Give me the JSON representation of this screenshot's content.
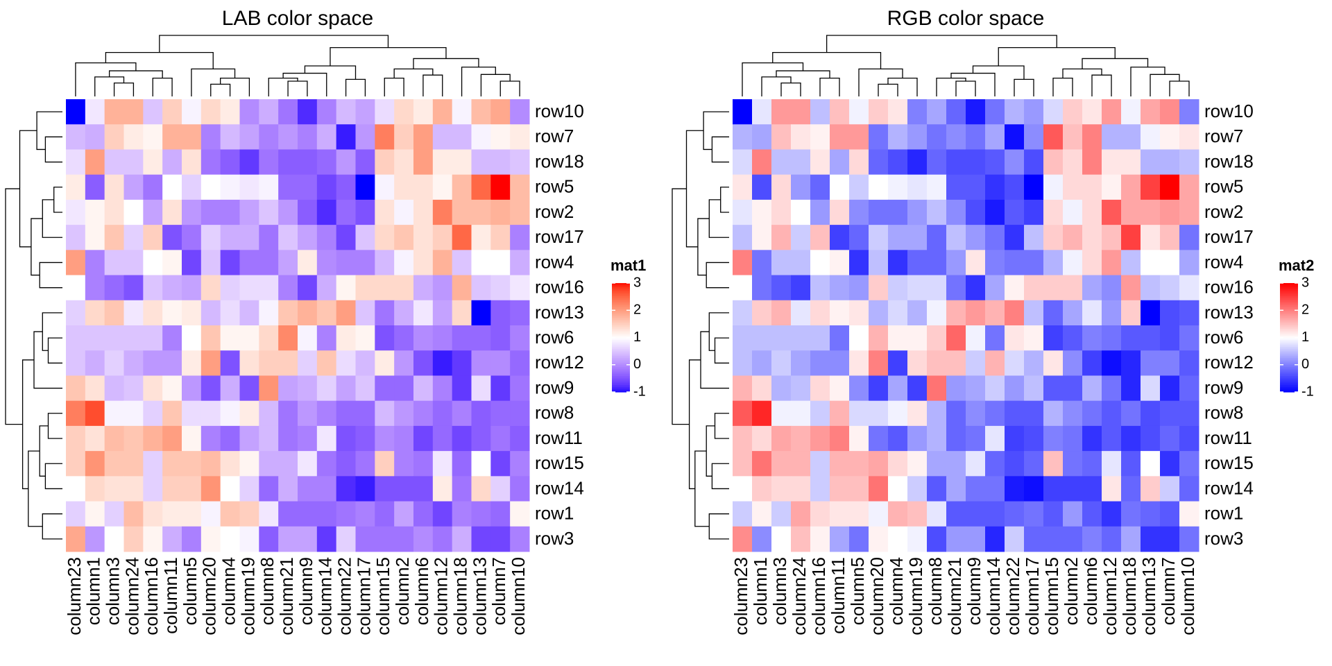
{
  "chart_data": [
    {
      "type": "heatmap",
      "title": "LAB color space",
      "legend_title": "mat1",
      "color_space": "LAB",
      "color_stops": [
        {
          "value": -1,
          "color": "#0000ff"
        },
        {
          "value": 1,
          "color": "#ffffff"
        },
        {
          "value": 3,
          "color": "#ff0000"
        }
      ],
      "legend_ticks": [
        -1,
        0,
        1,
        2,
        3
      ],
      "rows": [
        "row10",
        "row7",
        "row18",
        "row5",
        "row2",
        "row17",
        "row4",
        "row16",
        "row13",
        "row6",
        "row12",
        "row9",
        "row8",
        "row11",
        "row15",
        "row14",
        "row1",
        "row3"
      ],
      "columns": [
        "column23",
        "column1",
        "column3",
        "column24",
        "column16",
        "column11",
        "column5",
        "column20",
        "column4",
        "column19",
        "column8",
        "column21",
        "column9",
        "column14",
        "column22",
        "column17",
        "column15",
        "column2",
        "column6",
        "column12",
        "column18",
        "column13",
        "column7",
        "column10"
      ],
      "values": [
        [
          -1,
          0.8,
          1.8,
          1.8,
          0.5,
          1.5,
          0.9,
          1.4,
          1.2,
          0,
          0.3,
          -0.2,
          -0.8,
          -0.1,
          0.4,
          0.2,
          0.7,
          1.4,
          1.2,
          1.8,
          0.9,
          1.7,
          1.9,
          0
        ],
        [
          0.4,
          0.3,
          1.5,
          1.2,
          1.1,
          1.8,
          1.8,
          -0.1,
          0.4,
          0.2,
          -0.1,
          0.1,
          -0.1,
          0.3,
          -0.9,
          0.1,
          2.3,
          1.5,
          2.0,
          0.4,
          0.4,
          0.9,
          1.1,
          1.2
        ],
        [
          0.7,
          2.0,
          0.5,
          0.5,
          1.2,
          0.3,
          1.3,
          -0.2,
          -0.4,
          -0.7,
          -0.2,
          -0.4,
          -0.4,
          -0.3,
          0.1,
          -0.4,
          1.5,
          1.3,
          2.0,
          1.2,
          1.2,
          0.4,
          0.4,
          0.5
        ],
        [
          1.2,
          -0.4,
          1.3,
          0.2,
          -0.2,
          1.0,
          0.6,
          1.0,
          0.9,
          0.8,
          0.9,
          -0.3,
          -0.3,
          -0.6,
          -0.4,
          -1.0,
          0.9,
          1.3,
          1.3,
          1.1,
          1.7,
          2.5,
          3.0,
          1.7
        ],
        [
          0.8,
          1.1,
          1.3,
          1.0,
          0.2,
          1.3,
          0.1,
          -0.1,
          -0.1,
          0.2,
          0.5,
          0.1,
          -0.4,
          -0.8,
          -0.3,
          -0.5,
          1.3,
          0.9,
          1.3,
          2.3,
          1.7,
          1.7,
          1.8,
          1.7
        ],
        [
          0.5,
          1.1,
          1.6,
          0.6,
          1.5,
          -0.5,
          -0.2,
          0.6,
          0.3,
          0.3,
          -0.2,
          0.5,
          0.2,
          -0.1,
          -0.6,
          0.5,
          1.4,
          1.6,
          1.3,
          1.5,
          2.5,
          1.2,
          1.5,
          -0.1
        ],
        [
          2.0,
          -0.1,
          0.5,
          0.5,
          1.0,
          1.1,
          -0.6,
          0.5,
          -0.6,
          -0.2,
          -0.2,
          0.2,
          1.2,
          0,
          -0.1,
          -0.1,
          0.4,
          0.9,
          1.3,
          1.8,
          0.5,
          1.0,
          1.0,
          0.3
        ],
        [
          1.0,
          -0.1,
          -0.3,
          -0.5,
          0.5,
          0.3,
          0.2,
          1.4,
          0.6,
          0.7,
          0.7,
          -0.1,
          -0.6,
          0.3,
          1.1,
          1.4,
          1.4,
          1.4,
          0.3,
          0.1,
          1.8,
          0.5,
          0.6,
          0.8
        ],
        [
          0.6,
          1.4,
          1.6,
          0.8,
          1.3,
          1.1,
          1.2,
          0.4,
          0.7,
          0.4,
          0.9,
          1.6,
          1.8,
          1.6,
          2.0,
          0.5,
          -0.2,
          0.3,
          0.8,
          0.2,
          1.4,
          -1.0,
          -0.4,
          -0.3
        ],
        [
          0.5,
          0.5,
          0.5,
          0.5,
          0.5,
          -0.1,
          1.0,
          1.6,
          1.1,
          1.1,
          1.4,
          2.2,
          0.9,
          -0.1,
          1.2,
          1.1,
          -0.5,
          -0.3,
          0,
          -0.1,
          -0.3,
          -0.3,
          -0.4,
          -0.1
        ],
        [
          0.5,
          0.3,
          0.6,
          0.3,
          0.1,
          0.1,
          1.2,
          2.0,
          -0.5,
          1.3,
          1.5,
          1.5,
          0.6,
          1.6,
          0.7,
          0.4,
          1.2,
          0.1,
          -0.5,
          -0.9,
          -0.7,
          0,
          0,
          -0.3
        ],
        [
          1.6,
          1.3,
          0.4,
          0.5,
          1.3,
          1.1,
          0.1,
          -0.5,
          0.3,
          -0.5,
          2.1,
          0.2,
          0.3,
          0.6,
          0.2,
          0.5,
          -0.3,
          -0.3,
          0.4,
          -0.1,
          -0.7,
          0.7,
          -0.7,
          -0.2
        ],
        [
          2.3,
          2.7,
          0.9,
          0.9,
          0.6,
          1.6,
          0.7,
          0.7,
          0.9,
          1.2,
          0.4,
          -0.2,
          0.1,
          -0.1,
          -0.3,
          -0.3,
          0.4,
          0.1,
          -0.1,
          -0.3,
          -0.1,
          -0.4,
          -0.3,
          -0.3
        ],
        [
          1.5,
          1.3,
          1.7,
          1.6,
          1.8,
          2.0,
          1.1,
          -0.1,
          -0.3,
          0.2,
          0.4,
          -0.2,
          -0.1,
          0.8,
          -0.5,
          -0.4,
          0,
          -0.1,
          -0.6,
          -0.3,
          -0.6,
          -0.4,
          -0.2,
          -0.4
        ],
        [
          1.5,
          2.1,
          1.6,
          1.6,
          0.6,
          1.6,
          1.6,
          1.7,
          1.3,
          1.1,
          0.3,
          0.3,
          0.8,
          -0.2,
          -0.4,
          -0.2,
          1.5,
          -0.1,
          -0.2,
          0.8,
          -0.3,
          1.0,
          -0.6,
          -0.1
        ],
        [
          1.0,
          1.4,
          1.3,
          1.3,
          0.6,
          1.5,
          1.5,
          2.1,
          1.0,
          0.6,
          -0.3,
          0.3,
          -0.1,
          -0.1,
          -0.8,
          -0.9,
          -0.5,
          -0.5,
          -0.5,
          1.2,
          -0.2,
          1.4,
          0.6,
          -0.2
        ],
        [
          0.6,
          1.1,
          0.6,
          1.7,
          1.3,
          1.2,
          1.2,
          0.9,
          1.6,
          1.5,
          0.8,
          -0.3,
          -0.3,
          -0.3,
          -0.2,
          -0.1,
          -0.3,
          0.2,
          -0.3,
          -0.6,
          -0.1,
          -0.2,
          -0.3,
          1.1
        ],
        [
          1.9,
          0.1,
          1.0,
          1.5,
          1.1,
          0.3,
          -0.1,
          1.1,
          1.0,
          0.9,
          -0.4,
          0.2,
          0.2,
          -0.7,
          0.6,
          -0.2,
          -0.2,
          -0.2,
          0,
          -0.2,
          0.3,
          -0.6,
          -0.6,
          -0.1
        ]
      ]
    },
    {
      "type": "heatmap",
      "title": "RGB color space",
      "legend_title": "mat2",
      "color_space": "RGB",
      "color_stops": [
        {
          "value": -1,
          "color": "#0000ff"
        },
        {
          "value": 1,
          "color": "#ffffff"
        },
        {
          "value": 3,
          "color": "#ff0000"
        }
      ],
      "legend_ticks": [
        -1,
        0,
        1,
        2,
        3
      ],
      "rows": [
        "row10",
        "row7",
        "row18",
        "row5",
        "row2",
        "row17",
        "row4",
        "row16",
        "row13",
        "row6",
        "row12",
        "row9",
        "row8",
        "row11",
        "row15",
        "row14",
        "row1",
        "row3"
      ],
      "columns": [
        "column23",
        "column1",
        "column3",
        "column24",
        "column16",
        "column11",
        "column5",
        "column20",
        "column4",
        "column19",
        "column8",
        "column21",
        "column9",
        "column14",
        "column22",
        "column17",
        "column15",
        "column2",
        "column6",
        "column12",
        "column18",
        "column13",
        "column7",
        "column10"
      ],
      "values": [
        [
          -1,
          0.8,
          1.8,
          1.8,
          0.5,
          1.5,
          0.9,
          1.4,
          1.2,
          0,
          0.3,
          -0.2,
          -0.8,
          -0.1,
          0.4,
          0.2,
          0.7,
          1.4,
          1.2,
          1.8,
          0.9,
          1.7,
          1.9,
          0
        ],
        [
          0.4,
          0.3,
          1.5,
          1.2,
          1.1,
          1.8,
          1.8,
          -0.1,
          0.4,
          0.2,
          -0.1,
          0.1,
          -0.1,
          0.3,
          -0.9,
          0.1,
          2.3,
          1.5,
          2.0,
          0.4,
          0.4,
          0.9,
          1.1,
          1.2
        ],
        [
          0.7,
          2.0,
          0.5,
          0.5,
          1.2,
          0.3,
          1.3,
          -0.2,
          -0.4,
          -0.7,
          -0.2,
          -0.4,
          -0.4,
          -0.3,
          0.1,
          -0.4,
          1.5,
          1.3,
          2.0,
          1.2,
          1.2,
          0.4,
          0.4,
          0.5
        ],
        [
          1.2,
          -0.4,
          1.3,
          0.2,
          -0.2,
          1.0,
          0.6,
          1.0,
          0.9,
          0.8,
          0.9,
          -0.3,
          -0.3,
          -0.6,
          -0.4,
          -1.0,
          0.9,
          1.3,
          1.3,
          1.1,
          1.7,
          2.5,
          3.0,
          1.7
        ],
        [
          0.8,
          1.1,
          1.3,
          1.0,
          0.2,
          1.3,
          0.1,
          -0.1,
          -0.1,
          0.2,
          0.5,
          0.1,
          -0.4,
          -0.8,
          -0.3,
          -0.5,
          1.3,
          0.9,
          1.3,
          2.3,
          1.7,
          1.7,
          1.8,
          1.7
        ],
        [
          0.5,
          1.1,
          1.6,
          0.6,
          1.5,
          -0.5,
          -0.2,
          0.6,
          0.3,
          0.3,
          -0.2,
          0.5,
          0.2,
          -0.1,
          -0.6,
          0.5,
          1.4,
          1.6,
          1.3,
          1.5,
          2.5,
          1.2,
          1.5,
          -0.1
        ],
        [
          2.0,
          -0.1,
          0.5,
          0.5,
          1.0,
          1.1,
          -0.6,
          0.5,
          -0.6,
          -0.2,
          -0.2,
          0.2,
          1.2,
          0,
          -0.1,
          -0.1,
          0.4,
          0.9,
          1.3,
          1.8,
          0.5,
          1.0,
          1.0,
          0.3
        ],
        [
          1.0,
          -0.1,
          -0.3,
          -0.5,
          0.5,
          0.3,
          0.2,
          1.4,
          0.6,
          0.7,
          0.7,
          -0.1,
          -0.6,
          0.3,
          1.1,
          1.4,
          1.4,
          1.4,
          0.3,
          0.1,
          1.8,
          0.5,
          0.6,
          0.8
        ],
        [
          0.6,
          1.4,
          1.6,
          0.8,
          1.3,
          1.1,
          1.2,
          0.4,
          0.7,
          0.4,
          0.9,
          1.6,
          1.8,
          1.6,
          2.0,
          0.5,
          -0.2,
          0.3,
          0.8,
          0.2,
          1.4,
          -1.0,
          -0.4,
          -0.3
        ],
        [
          0.5,
          0.5,
          0.5,
          0.5,
          0.5,
          -0.1,
          1.0,
          1.6,
          1.1,
          1.1,
          1.4,
          2.2,
          0.9,
          -0.1,
          1.2,
          1.1,
          -0.5,
          -0.3,
          0,
          -0.1,
          -0.3,
          -0.3,
          -0.4,
          -0.1
        ],
        [
          0.5,
          0.3,
          0.6,
          0.3,
          0.1,
          0.1,
          1.2,
          2.0,
          -0.5,
          1.3,
          1.5,
          1.5,
          0.6,
          1.6,
          0.7,
          0.4,
          1.2,
          0.1,
          -0.5,
          -0.9,
          -0.7,
          0,
          0,
          -0.3
        ],
        [
          1.6,
          1.3,
          0.4,
          0.5,
          1.3,
          1.1,
          0.1,
          -0.5,
          0.3,
          -0.5,
          2.1,
          0.2,
          0.3,
          0.6,
          0.2,
          0.5,
          -0.3,
          -0.3,
          0.4,
          -0.1,
          -0.7,
          0.7,
          -0.7,
          -0.2
        ],
        [
          2.3,
          2.7,
          0.9,
          0.9,
          0.6,
          1.6,
          0.7,
          0.7,
          0.9,
          1.2,
          0.4,
          -0.2,
          0.1,
          -0.1,
          -0.3,
          -0.3,
          0.4,
          0.1,
          -0.1,
          -0.3,
          -0.1,
          -0.4,
          -0.3,
          -0.3
        ],
        [
          1.5,
          1.3,
          1.7,
          1.6,
          1.8,
          2.0,
          1.1,
          -0.1,
          -0.3,
          0.2,
          0.4,
          -0.2,
          -0.1,
          0.8,
          -0.5,
          -0.4,
          0,
          -0.1,
          -0.6,
          -0.3,
          -0.6,
          -0.4,
          -0.2,
          -0.4
        ],
        [
          1.5,
          2.1,
          1.6,
          1.6,
          0.6,
          1.6,
          1.6,
          1.7,
          1.3,
          1.1,
          0.3,
          0.3,
          0.8,
          -0.2,
          -0.4,
          -0.2,
          1.5,
          -0.1,
          -0.2,
          0.8,
          -0.3,
          1.0,
          -0.6,
          -0.1
        ],
        [
          1.0,
          1.4,
          1.3,
          1.3,
          0.6,
          1.5,
          1.5,
          2.1,
          1.0,
          0.6,
          -0.3,
          0.3,
          -0.1,
          -0.1,
          -0.8,
          -0.9,
          -0.5,
          -0.5,
          -0.5,
          1.2,
          -0.2,
          1.4,
          0.6,
          -0.2
        ],
        [
          0.6,
          1.1,
          0.6,
          1.7,
          1.3,
          1.2,
          1.2,
          0.9,
          1.6,
          1.5,
          0.8,
          -0.3,
          -0.3,
          -0.3,
          -0.2,
          -0.1,
          -0.3,
          0.2,
          -0.3,
          -0.6,
          -0.1,
          -0.2,
          -0.3,
          1.1
        ],
        [
          1.9,
          0.1,
          1.0,
          1.5,
          1.1,
          0.3,
          -0.1,
          1.1,
          1.0,
          0.9,
          -0.4,
          0.2,
          0.2,
          -0.7,
          0.6,
          -0.2,
          -0.2,
          -0.2,
          0,
          -0.2,
          0.3,
          -0.6,
          -0.6,
          -0.1
        ]
      ]
    }
  ]
}
